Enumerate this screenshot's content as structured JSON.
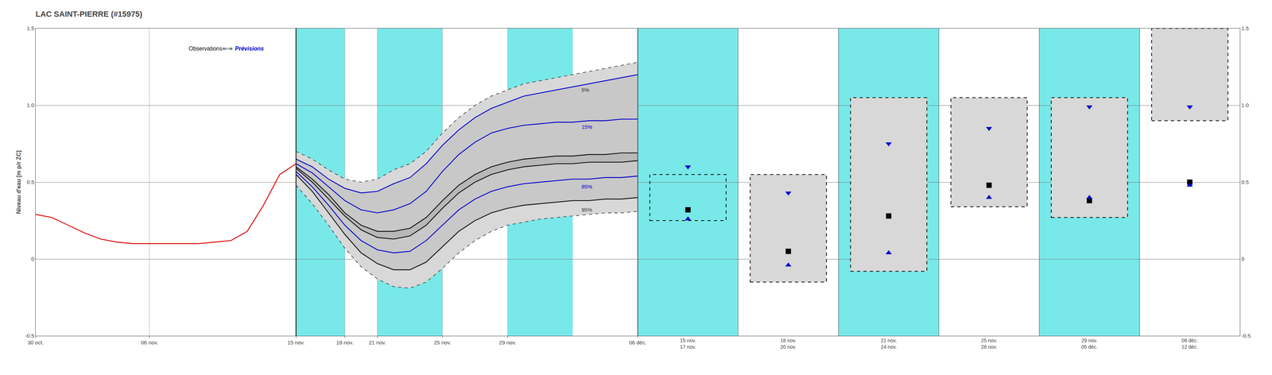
{
  "chart_data": [
    {
      "type": "line",
      "title": "LAC SAINT-PIERRE (#15975)",
      "ylabel": "Niveau d'eau [m p/r ZC]",
      "xlim": [
        0,
        37
      ],
      "xticks": [
        {
          "value": 0,
          "label": "30 oct."
        },
        {
          "value": 7,
          "label": "06 nov."
        },
        {
          "value": 16,
          "label": "15 nov."
        },
        {
          "value": 19,
          "label": "18 nov."
        },
        {
          "value": 21,
          "label": "21 nov."
        },
        {
          "value": 25,
          "label": "25 nov."
        },
        {
          "value": 29,
          "label": "29 nov."
        },
        {
          "value": 37,
          "label": "06 déc."
        }
      ],
      "ylim": [
        -0.5,
        1.5
      ],
      "yticks": [
        -0.5,
        0,
        0.5,
        {
          "value": 1,
          "label": "1.0"
        },
        1.5
      ],
      "grid": true,
      "shading": {
        "color": "#78e8e8",
        "ranges": [
          [
            16,
            19
          ],
          [
            21,
            25
          ],
          [
            29,
            33
          ]
        ]
      },
      "divider": {
        "x": 16,
        "color": "#222222",
        "text_x": 11.5,
        "text_y": 1.37,
        "texts": [
          "Observations",
          "⇐⇒",
          "Prévisions"
        ],
        "text_colors": [
          "#111111",
          "#111111",
          "#0000cc"
        ]
      },
      "series": [
        {
          "x": [
            0,
            1,
            2,
            3,
            4,
            5,
            6,
            7,
            8,
            9,
            10,
            11,
            12,
            13,
            14,
            15,
            16
          ],
          "values": [
            0.29,
            0.27,
            0.22,
            0.17,
            0.13,
            0.11,
            0.1,
            0.1,
            0.1,
            0.1,
            0.1,
            0.11,
            0.12,
            0.18,
            0.35,
            0.55,
            0.62
          ],
          "color": "#dd0000",
          "line_style": "solid"
        },
        {
          "x": [
            16,
            17,
            18,
            19,
            20,
            21,
            22,
            23,
            24,
            25,
            26,
            27,
            28,
            29,
            30,
            31,
            32,
            33,
            34,
            35,
            36,
            37
          ],
          "values": [
            0.7,
            0.65,
            0.58,
            0.52,
            0.5,
            0.52,
            0.58,
            0.62,
            0.7,
            0.82,
            0.92,
            1.0,
            1.06,
            1.1,
            1.14,
            1.16,
            1.18,
            1.2,
            1.22,
            1.24,
            1.26,
            1.28
          ],
          "color": "#333333",
          "line_style": "dashed"
        },
        {
          "x": [
            16,
            17,
            18,
            19,
            20,
            21,
            22,
            23,
            24,
            25,
            26,
            27,
            28,
            29,
            30,
            31,
            32,
            33,
            34,
            35,
            36,
            37
          ],
          "values": [
            0.65,
            0.6,
            0.52,
            0.46,
            0.43,
            0.44,
            0.49,
            0.53,
            0.62,
            0.74,
            0.84,
            0.92,
            0.98,
            1.02,
            1.06,
            1.08,
            1.1,
            1.12,
            1.14,
            1.16,
            1.18,
            1.2
          ],
          "color": "#0000cc",
          "line_style": "solid"
        },
        {
          "x": [
            16,
            17,
            18,
            19,
            20,
            21,
            22,
            23,
            24,
            25,
            26,
            27,
            28,
            29,
            30,
            31,
            32,
            33,
            34,
            35,
            36,
            37
          ],
          "values": [
            0.62,
            0.56,
            0.47,
            0.38,
            0.32,
            0.3,
            0.32,
            0.36,
            0.44,
            0.57,
            0.68,
            0.76,
            0.82,
            0.85,
            0.87,
            0.88,
            0.89,
            0.89,
            0.9,
            0.9,
            0.91,
            0.91
          ],
          "color": "#0000cc",
          "line_style": "solid"
        },
        {
          "x": [
            16,
            17,
            18,
            19,
            20,
            21,
            22,
            23,
            24,
            25,
            26,
            27,
            28,
            29,
            30,
            31,
            32,
            33,
            34,
            35,
            36,
            37
          ],
          "values": [
            0.6,
            0.52,
            0.42,
            0.3,
            0.22,
            0.18,
            0.18,
            0.2,
            0.27,
            0.38,
            0.48,
            0.55,
            0.6,
            0.63,
            0.65,
            0.66,
            0.67,
            0.67,
            0.68,
            0.68,
            0.69,
            0.69
          ],
          "color": "#111111",
          "line_style": "solid"
        },
        {
          "x": [
            16,
            17,
            18,
            19,
            20,
            21,
            22,
            23,
            24,
            25,
            26,
            27,
            28,
            29,
            30,
            31,
            32,
            33,
            34,
            35,
            36,
            37
          ],
          "values": [
            0.59,
            0.5,
            0.39,
            0.28,
            0.19,
            0.14,
            0.13,
            0.15,
            0.22,
            0.33,
            0.43,
            0.5,
            0.55,
            0.58,
            0.6,
            0.61,
            0.62,
            0.62,
            0.63,
            0.63,
            0.63,
            0.64
          ],
          "color": "#111111",
          "line_style": "solid"
        },
        {
          "x": [
            16,
            17,
            18,
            19,
            20,
            21,
            22,
            23,
            24,
            25,
            26,
            27,
            28,
            29,
            30,
            31,
            32,
            33,
            34,
            35,
            36,
            37
          ],
          "values": [
            0.57,
            0.47,
            0.35,
            0.22,
            0.12,
            0.06,
            0.04,
            0.05,
            0.12,
            0.22,
            0.32,
            0.39,
            0.44,
            0.47,
            0.49,
            0.5,
            0.51,
            0.52,
            0.52,
            0.53,
            0.53,
            0.54
          ],
          "color": "#0000cc",
          "line_style": "solid"
        },
        {
          "x": [
            16,
            17,
            18,
            19,
            20,
            21,
            22,
            23,
            24,
            25,
            26,
            27,
            28,
            29,
            30,
            31,
            32,
            33,
            34,
            35,
            36,
            37
          ],
          "values": [
            0.55,
            0.44,
            0.3,
            0.16,
            0.04,
            -0.03,
            -0.07,
            -0.07,
            -0.02,
            0.08,
            0.18,
            0.25,
            0.3,
            0.33,
            0.35,
            0.36,
            0.37,
            0.38,
            0.38,
            0.39,
            0.39,
            0.4
          ],
          "color": "#111111",
          "line_style": "solid"
        },
        {
          "x": [
            16,
            17,
            18,
            19,
            20,
            21,
            22,
            23,
            24,
            25,
            26,
            27,
            28,
            29,
            30,
            31,
            32,
            33,
            34,
            35,
            36,
            37
          ],
          "values": [
            0.48,
            0.36,
            0.22,
            0.07,
            -0.05,
            -0.13,
            -0.18,
            -0.19,
            -0.15,
            -0.06,
            0.04,
            0.12,
            0.18,
            0.22,
            0.24,
            0.26,
            0.27,
            0.28,
            0.29,
            0.3,
            0.3,
            0.31
          ],
          "color": "#333333",
          "line_style": "dashed"
        }
      ],
      "fills": [
        {
          "lower": 8,
          "upper": 1,
          "color": "#d8d8d8"
        },
        {
          "lower": 7,
          "upper": 2,
          "color": "#c8c8c8"
        },
        {
          "lower": 5,
          "upper": 4,
          "color": "#b8b8b8"
        }
      ],
      "annotations": [
        {
          "text": "5%",
          "x": 33.5,
          "y": 1.1,
          "color": "#333333"
        },
        {
          "text": "15%",
          "x": 33.5,
          "y": 0.86,
          "color": "#0000cc"
        },
        {
          "text": "85%",
          "x": 33.5,
          "y": 0.47,
          "color": "#0000cc"
        },
        {
          "text": "95%",
          "x": 33.5,
          "y": 0.32,
          "color": "#333333"
        }
      ]
    },
    {
      "type": "box",
      "categories": [
        "15 nov.\n17 nov.",
        "18 nov.\n20 nov.",
        "21 nov.\n24 nov.",
        "25 nov.\n28 nov.",
        "29 nov.\n05 déc.",
        "06 déc.\n12 déc."
      ],
      "ylim": [
        -0.5,
        1.5
      ],
      "yticks": [
        -0.5,
        0,
        0.5,
        {
          "value": 1,
          "label": "1.0"
        },
        1.5
      ],
      "grid": true,
      "background_colors": [
        "#78e8e8",
        "#ffffff",
        "#78e8e8",
        "#ffffff",
        "#78e8e8",
        "#ffffff"
      ],
      "box_low": [
        0.25,
        -0.15,
        -0.08,
        0.34,
        0.27,
        0.9
      ],
      "box_high": [
        0.55,
        0.55,
        1.05,
        1.05,
        1.05,
        1.5
      ],
      "box_colors": [
        null,
        "#d8d8d8",
        "#d8d8d8",
        "#d8d8d8",
        "#d8d8d8",
        "#d8d8d8"
      ],
      "series": [
        {
          "marker": "square",
          "color": "#000000",
          "values": [
            0.32,
            0.05,
            0.28,
            0.48,
            0.38,
            0.5
          ]
        },
        {
          "marker": "triangle-up",
          "color": "#0000cc",
          "values": [
            0.26,
            -0.04,
            0.04,
            0.4,
            0.4,
            0.48
          ]
        },
        {
          "marker": "triangle-down",
          "color": "#0000cc",
          "values": [
            0.6,
            0.43,
            0.75,
            0.85,
            0.99,
            0.99
          ]
        }
      ]
    }
  ]
}
